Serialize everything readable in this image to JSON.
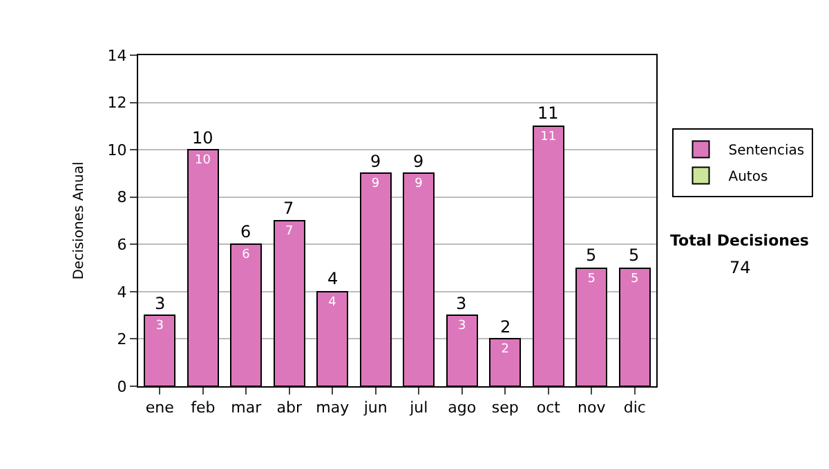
{
  "chart_data": {
    "type": "bar",
    "ylabel": "Decisiones Anual",
    "categories": [
      "ene",
      "feb",
      "mar",
      "abr",
      "may",
      "jun",
      "jul",
      "ago",
      "sep",
      "oct",
      "nov",
      "dic"
    ],
    "series": [
      {
        "name": "Sentencias",
        "color": "#dd77bb",
        "values": [
          3,
          10,
          6,
          7,
          4,
          9,
          9,
          3,
          2,
          11,
          5,
          5
        ],
        "value_labels": [
          "3",
          "10",
          "6",
          "7",
          "4",
          "9",
          "9",
          "3",
          "2",
          "11",
          "5",
          "5"
        ]
      },
      {
        "name": "Autos",
        "color": "#cce699",
        "values": [
          null,
          null,
          null,
          null,
          null,
          null,
          null,
          null,
          null,
          null,
          null,
          null
        ]
      }
    ],
    "stacked": true,
    "totals": [
      "3",
      "10",
      "6",
      "7",
      "4",
      "9",
      "9",
      "3",
      "2",
      "11",
      "5",
      "5"
    ],
    "ylim": [
      0,
      14
    ],
    "yticks": [
      0,
      2,
      4,
      6,
      8,
      10,
      12,
      14
    ],
    "grid": "y",
    "legend": "right",
    "annotations": [
      "Total Decisiones",
      "74"
    ]
  }
}
